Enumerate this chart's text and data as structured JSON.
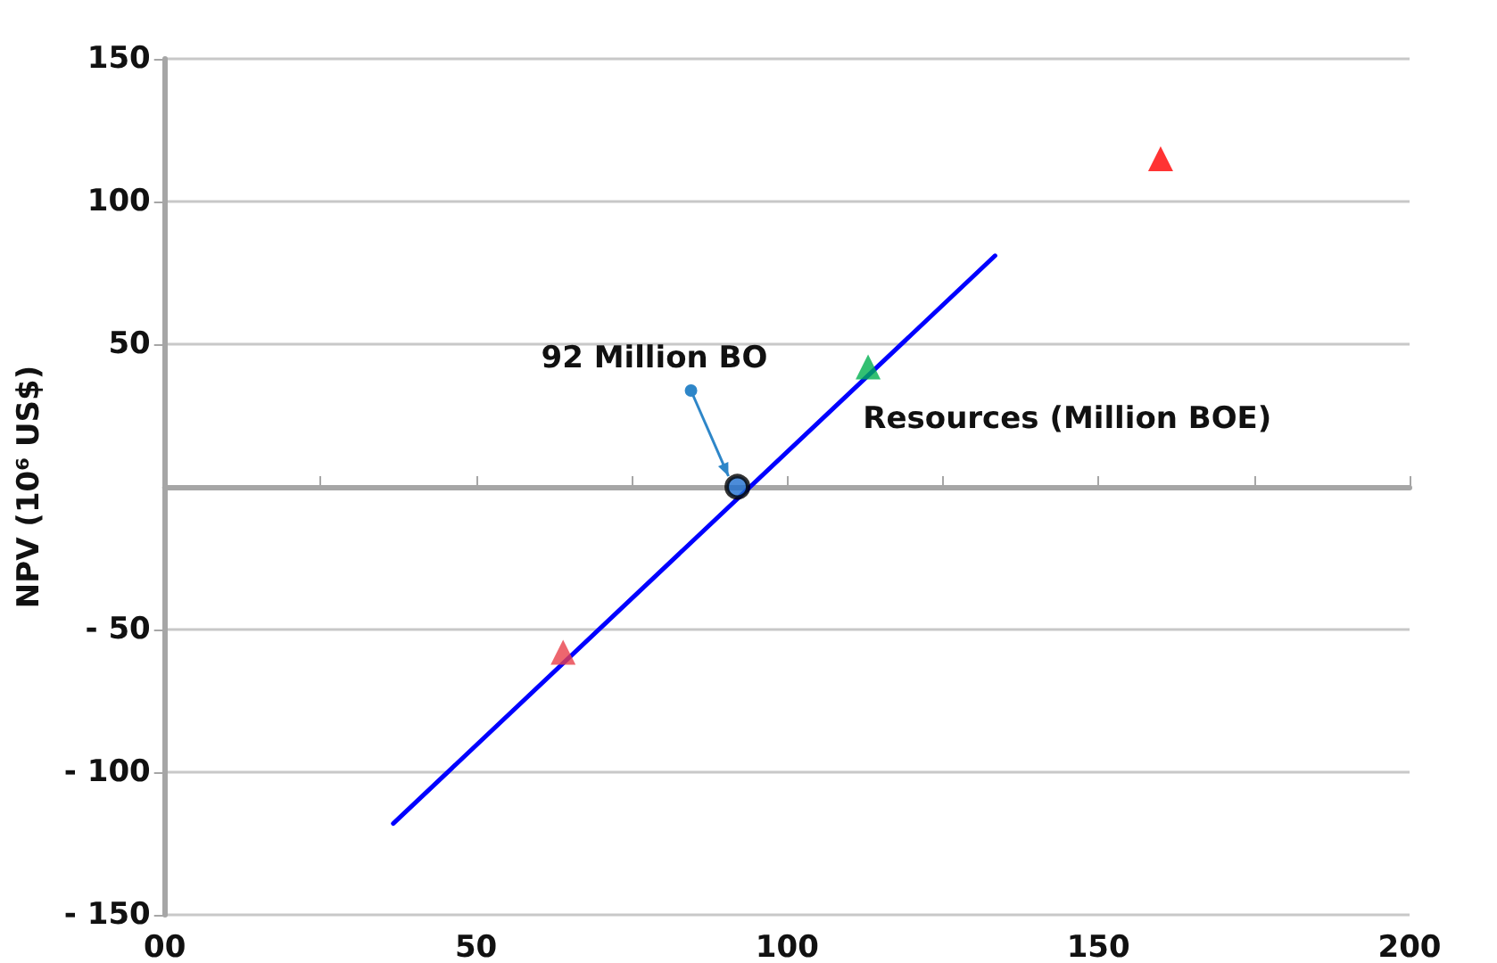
{
  "chart_data": {
    "type": "scatter",
    "xlabel": "Resources (Million BOE)",
    "ylabel": "NPV (10⁶ US$)",
    "xlim": [
      0,
      200
    ],
    "ylim": [
      -150,
      150
    ],
    "xticks": [
      {
        "value": 0,
        "label": "00"
      },
      {
        "value": 25,
        "label": null
      },
      50,
      {
        "value": 75,
        "label": null
      },
      100,
      {
        "value": 125,
        "label": null
      },
      150,
      {
        "value": 175,
        "label": null
      },
      200
    ],
    "yticks": [
      {
        "value": -150,
        "label": "- 150"
      },
      {
        "value": -100,
        "label": "- 100"
      },
      {
        "value": -50,
        "label": "- 50"
      },
      50,
      100,
      150
    ],
    "grid": "y",
    "annotations": [
      {
        "text": "92 Million BO",
        "x": 92,
        "y": 0
      }
    ],
    "series": [
      {
        "type": "line",
        "color": "#0000ff",
        "x": [
          36.7,
          133.4
        ],
        "values": [
          -118,
          81
        ],
        "marker": "none",
        "line_style": "solid"
      },
      {
        "color": "#1f6fd0",
        "x": [
          92
        ],
        "values": [
          0
        ],
        "marker": "circle"
      },
      {
        "colors": [
          "#e8404a",
          "#00b050",
          "#ff0000"
        ],
        "x": [
          64,
          113,
          160
        ],
        "values": [
          -58,
          42,
          115
        ],
        "marker": "triangle"
      }
    ]
  }
}
